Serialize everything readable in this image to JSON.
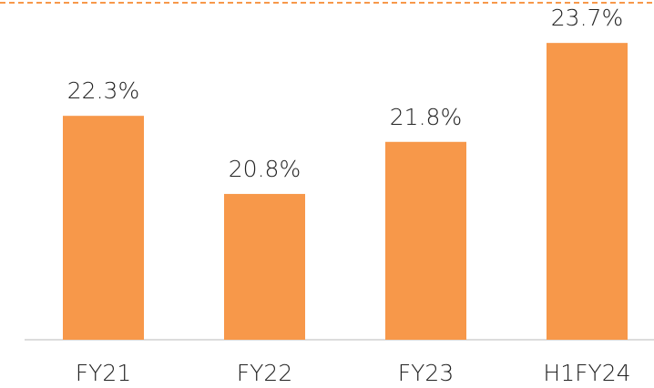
{
  "chart_data": {
    "type": "bar",
    "categories": [
      "FY21",
      "FY22",
      "FY23",
      "H1FY24"
    ],
    "values": [
      22.3,
      20.8,
      21.8,
      23.7
    ],
    "value_labels": [
      "22.3%",
      "20.8%",
      "21.8%",
      "23.7%"
    ],
    "color": "#f7984a",
    "ylim": [
      18,
      24
    ]
  }
}
